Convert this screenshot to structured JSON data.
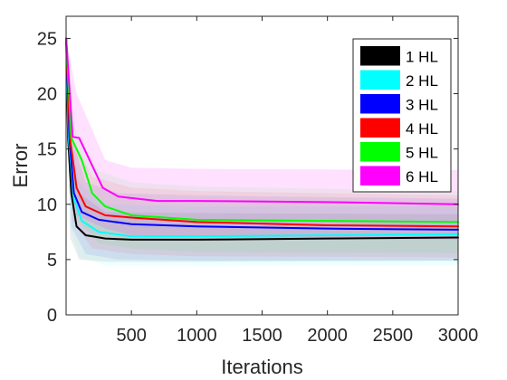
{
  "chart_data": {
    "type": "line",
    "xlabel": "Iterations",
    "ylabel": "Error",
    "xlim": [
      0,
      3000
    ],
    "ylim": [
      0,
      27
    ],
    "xticks": [
      500,
      1000,
      1500,
      2000,
      2500,
      3000
    ],
    "yticks": [
      0,
      5,
      10,
      15,
      20,
      25
    ],
    "grid": false,
    "legend_position": "top-right",
    "series": [
      {
        "name": "1 HL",
        "color": "#000000",
        "points": [
          [
            1,
            25
          ],
          [
            15,
            16
          ],
          [
            40,
            11
          ],
          [
            80,
            8
          ],
          [
            150,
            7.2
          ],
          [
            300,
            6.9
          ],
          [
            500,
            6.8
          ],
          [
            1000,
            6.8
          ],
          [
            2000,
            6.9
          ],
          [
            3000,
            7.0
          ]
        ],
        "band_lower": [
          [
            1,
            25
          ],
          [
            30,
            7
          ],
          [
            100,
            5
          ],
          [
            300,
            4.8
          ],
          [
            1000,
            4.8
          ],
          [
            3000,
            4.9
          ]
        ],
        "band_upper": [
          [
            1,
            25
          ],
          [
            30,
            16
          ],
          [
            100,
            11
          ],
          [
            300,
            9.3
          ],
          [
            1000,
            9.2
          ],
          [
            3000,
            9.1
          ]
        ]
      },
      {
        "name": "2 HL",
        "color": "#00ffff",
        "points": [
          [
            1,
            25
          ],
          [
            20,
            16
          ],
          [
            60,
            10.5
          ],
          [
            120,
            8.5
          ],
          [
            250,
            7.5
          ],
          [
            500,
            7.1
          ],
          [
            1000,
            7.1
          ],
          [
            2000,
            7.2
          ],
          [
            3000,
            7.3
          ]
        ],
        "band_lower": [
          [
            1,
            25
          ],
          [
            30,
            8
          ],
          [
            100,
            5.2
          ],
          [
            300,
            4.5
          ],
          [
            1000,
            4.4
          ],
          [
            3000,
            4.5
          ]
        ],
        "band_upper": [
          [
            1,
            25
          ],
          [
            30,
            16
          ],
          [
            100,
            12
          ],
          [
            300,
            10
          ],
          [
            1000,
            9.8
          ],
          [
            3000,
            9.8
          ]
        ]
      },
      {
        "name": "3 HL",
        "color": "#0000ff",
        "points": [
          [
            1,
            25
          ],
          [
            25,
            16
          ],
          [
            60,
            11
          ],
          [
            120,
            9.3
          ],
          [
            250,
            8.6
          ],
          [
            500,
            8.2
          ],
          [
            1000,
            8.0
          ],
          [
            2000,
            7.8
          ],
          [
            3000,
            7.7
          ]
        ],
        "band_lower": [
          [
            1,
            25
          ],
          [
            40,
            8
          ],
          [
            150,
            5.5
          ],
          [
            400,
            5
          ],
          [
            1000,
            4.9
          ],
          [
            3000,
            4.9
          ]
        ],
        "band_upper": [
          [
            1,
            25
          ],
          [
            40,
            16
          ],
          [
            150,
            12
          ],
          [
            400,
            11
          ],
          [
            1000,
            10.8
          ],
          [
            3000,
            10.5
          ]
        ]
      },
      {
        "name": "4 HL",
        "color": "#ff0000",
        "points": [
          [
            1,
            25
          ],
          [
            30,
            16
          ],
          [
            80,
            11.5
          ],
          [
            150,
            9.8
          ],
          [
            300,
            9
          ],
          [
            500,
            8.8
          ],
          [
            1000,
            8.4
          ],
          [
            2000,
            8.1
          ],
          [
            3000,
            8.0
          ]
        ],
        "band_lower": [
          [
            1,
            25
          ],
          [
            50,
            8.5
          ],
          [
            200,
            6
          ],
          [
            500,
            5.5
          ],
          [
            1000,
            5.3
          ],
          [
            3000,
            5.2
          ]
        ],
        "band_upper": [
          [
            1,
            25
          ],
          [
            50,
            16
          ],
          [
            200,
            12.5
          ],
          [
            500,
            11.5
          ],
          [
            1000,
            11.2
          ],
          [
            3000,
            10.8
          ]
        ]
      },
      {
        "name": "5 HL",
        "color": "#00ff00",
        "points": [
          [
            1,
            25
          ],
          [
            40,
            16
          ],
          [
            120,
            14
          ],
          [
            200,
            11
          ],
          [
            300,
            9.8
          ],
          [
            500,
            9.0
          ],
          [
            1000,
            8.6
          ],
          [
            2000,
            8.5
          ],
          [
            3000,
            8.4
          ]
        ],
        "band_lower": [
          [
            1,
            25
          ],
          [
            60,
            9
          ],
          [
            250,
            6.5
          ],
          [
            500,
            6
          ],
          [
            1000,
            5.7
          ],
          [
            3000,
            5.6
          ]
        ],
        "band_upper": [
          [
            1,
            25
          ],
          [
            60,
            17
          ],
          [
            250,
            13
          ],
          [
            500,
            12
          ],
          [
            1000,
            11.6
          ],
          [
            3000,
            11.2
          ]
        ]
      },
      {
        "name": "6 HL",
        "color": "#ff00ff",
        "points": [
          [
            1,
            25
          ],
          [
            50,
            16.1
          ],
          [
            100,
            16
          ],
          [
            180,
            14
          ],
          [
            280,
            11.5
          ],
          [
            400,
            10.7
          ],
          [
            700,
            10.3
          ],
          [
            1000,
            10.3
          ],
          [
            2000,
            10.2
          ],
          [
            3000,
            10.0
          ]
        ],
        "band_lower": [
          [
            1,
            25
          ],
          [
            80,
            9
          ],
          [
            300,
            7.8
          ],
          [
            500,
            7.2
          ],
          [
            1000,
            7
          ],
          [
            3000,
            6.8
          ]
        ],
        "band_upper": [
          [
            1,
            25
          ],
          [
            80,
            20
          ],
          [
            300,
            14
          ],
          [
            500,
            13.3
          ],
          [
            1000,
            13.2
          ],
          [
            3000,
            13.1
          ]
        ]
      }
    ]
  }
}
